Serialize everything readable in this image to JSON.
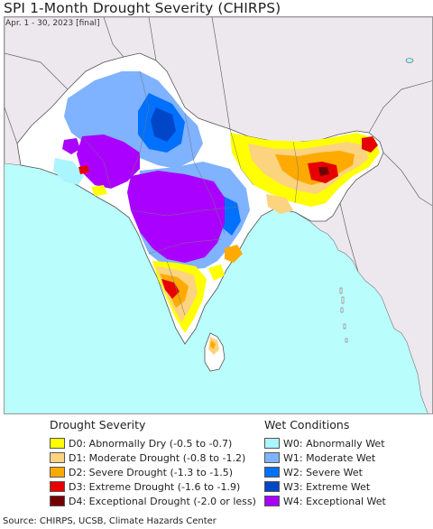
{
  "title": "SPI 1-Month Drought Severity (CHIRPS)",
  "subtitle": "Apr. 1 - 30, 2023 [final]",
  "source": "Source: CHIRPS, UCSB, Climate Hazards Center",
  "legend": {
    "drought": {
      "heading": "Drought Severity",
      "items": [
        {
          "label": "D0: Abnormally Dry (-0.5 to -0.7)",
          "color": "#ffff00"
        },
        {
          "label": "D1: Moderate Drought (-0.8 to -1.2)",
          "color": "#fcd37f"
        },
        {
          "label": "D2: Severe Drought (-1.3 to -1.5)",
          "color": "#ffaa00"
        },
        {
          "label": "D3: Extreme Drought (-1.6 to -1.9)",
          "color": "#e60000"
        },
        {
          "label": "D4: Exceptional Drought (-2.0 or less)",
          "color": "#730000"
        }
      ]
    },
    "wet": {
      "heading": "Wet Conditions",
      "items": [
        {
          "label": "W0: Abnormally Wet",
          "color": "#aaf5ff"
        },
        {
          "label": "W1: Moderate Wet",
          "color": "#7fb2ff"
        },
        {
          "label": "W2: Severe Wet",
          "color": "#0070ff"
        },
        {
          "label": "W3: Extreme Wet",
          "color": "#0046c8"
        },
        {
          "label": "W4: Exceptional Wet",
          "color": "#aa00ff"
        }
      ]
    }
  },
  "map_colors": {
    "ocean": "#b9fdfd",
    "land_outside": "#ede8ed",
    "normal": "#ffffff",
    "border": "#555555"
  }
}
